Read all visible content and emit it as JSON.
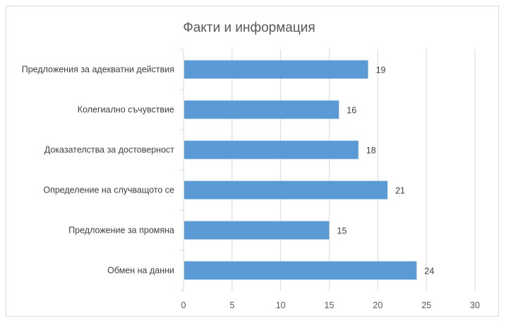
{
  "chart_data": {
    "type": "bar",
    "orientation": "horizontal",
    "title": "Факти и информация",
    "categories": [
      "Предложения за адекватни действия",
      "Колегиално съчувствие",
      "Доказателства за достоверност",
      "Определение на случващото се",
      "Предложение за промяна",
      "Обмен на данни"
    ],
    "values": [
      19,
      16,
      18,
      21,
      15,
      24
    ],
    "xlim": [
      0,
      30
    ],
    "xticks": [
      "0",
      "5",
      "10",
      "15",
      "20",
      "25",
      "30"
    ],
    "xtick_values": [
      0,
      5,
      10,
      15,
      20,
      25,
      30
    ],
    "grid": true,
    "legend": "none",
    "bar_color": "#5b9bd5"
  }
}
